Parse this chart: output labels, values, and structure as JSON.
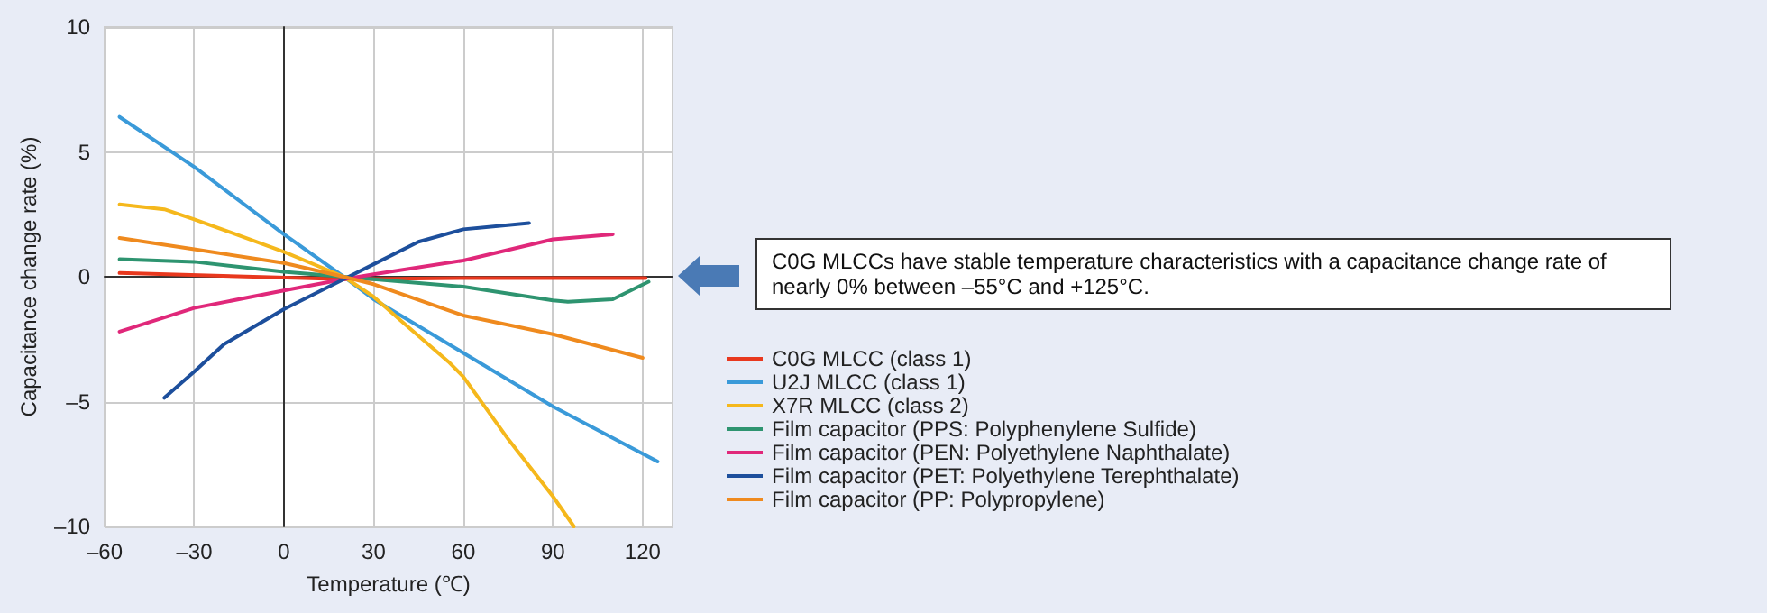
{
  "chart_data": {
    "type": "line",
    "xlabel": "Temperature (℃)",
    "ylabel": "Capacitance change rate (%)",
    "annotations": [
      "C0G MLCCs have stable temperature characteristics with a capacitance change rate of nearly 0% between –55°C and +125°C."
    ],
    "xlim": [
      -60,
      130
    ],
    "xticks": [
      {
        "value": -60,
        "label": "–60"
      },
      {
        "value": -30,
        "label": "–30"
      },
      0,
      30,
      60,
      90,
      120
    ],
    "ylim": [
      -10,
      10
    ],
    "yticks": [
      {
        "value": -10,
        "label": "–10"
      },
      {
        "value": -5,
        "label": "–5"
      },
      0,
      5,
      10
    ],
    "grid": true,
    "legend": "right",
    "marker": "none",
    "line_style": "solid",
    "series": [
      {
        "name": "C0G MLCC (class 1)",
        "color": "#e8381e",
        "x": [
          -55,
          20,
          60,
          121
        ],
        "values": [
          0.15,
          -0.1,
          -0.05,
          -0.05
        ]
      },
      {
        "name": "U2J MLCC (class 1)",
        "color": "#3a9ad9",
        "x": [
          -55,
          -30,
          0,
          20,
          30,
          60,
          90,
          125
        ],
        "values": [
          6.4,
          4.4,
          1.7,
          0,
          -0.9,
          -3.05,
          -5.2,
          -7.4
        ]
      },
      {
        "name": "X7R MLCC (class 2)",
        "color": "#f5b81c",
        "x": [
          -55,
          -40,
          -30,
          0,
          20,
          30,
          40,
          55,
          60,
          75,
          90,
          97
        ],
        "values": [
          2.9,
          2.7,
          2.3,
          1.0,
          0,
          -0.8,
          -1.85,
          -3.4,
          -4.0,
          -6.5,
          -8.8,
          -10
        ]
      },
      {
        "name": "Film capacitor (PPS: Polyphenylene Sulfide)",
        "color": "#2e9470",
        "x": [
          -55,
          -30,
          0,
          20,
          60,
          90,
          95,
          110,
          122
        ],
        "values": [
          0.7,
          0.6,
          0.2,
          0,
          -0.4,
          -0.95,
          -1.0,
          -0.9,
          -0.2
        ]
      },
      {
        "name": "Film capacitor (PEN: Polyethylene Naphthalate)",
        "color": "#e0287a",
        "x": [
          -55,
          -30,
          0,
          20,
          30,
          60,
          90,
          110
        ],
        "values": [
          -2.2,
          -1.25,
          -0.55,
          -0.1,
          0.1,
          0.65,
          1.5,
          1.7
        ]
      },
      {
        "name": "Film capacitor (PET: Polyethylene Terephthalate)",
        "color": "#1d4f9c",
        "x": [
          -40,
          -30,
          -20,
          0,
          20,
          30,
          45,
          60,
          82
        ],
        "values": [
          -4.85,
          -3.8,
          -2.7,
          -1.3,
          -0.1,
          0.5,
          1.4,
          1.9,
          2.15
        ]
      },
      {
        "name": "Film capacitor (PP: Polypropylene)",
        "color": "#ef8a1e",
        "x": [
          -55,
          -30,
          0,
          20,
          30,
          60,
          90,
          120
        ],
        "values": [
          1.55,
          1.1,
          0.55,
          0,
          -0.3,
          -1.55,
          -2.3,
          -3.25
        ]
      }
    ]
  }
}
